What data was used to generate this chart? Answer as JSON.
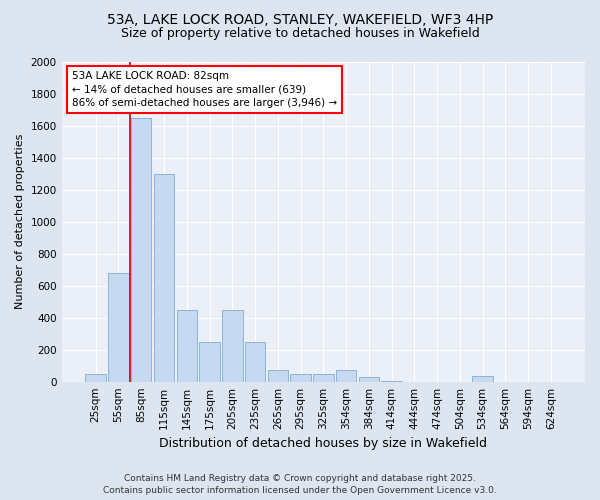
{
  "title_line1": "53A, LAKE LOCK ROAD, STANLEY, WAKEFIELD, WF3 4HP",
  "title_line2": "Size of property relative to detached houses in Wakefield",
  "xlabel": "Distribution of detached houses by size in Wakefield",
  "ylabel": "Number of detached properties",
  "categories": [
    "25sqm",
    "55sqm",
    "85sqm",
    "115sqm",
    "145sqm",
    "175sqm",
    "205sqm",
    "235sqm",
    "265sqm",
    "295sqm",
    "325sqm",
    "354sqm",
    "384sqm",
    "414sqm",
    "444sqm",
    "474sqm",
    "504sqm",
    "534sqm",
    "564sqm",
    "594sqm",
    "624sqm"
  ],
  "values": [
    50,
    680,
    1650,
    1300,
    450,
    250,
    450,
    250,
    75,
    50,
    50,
    75,
    30,
    5,
    0,
    0,
    0,
    35,
    0,
    0,
    0
  ],
  "bar_color": "#c6d9f0",
  "bar_edge_color": "#7bafd4",
  "vline_color": "#cc0000",
  "annotation_text": "53A LAKE LOCK ROAD: 82sqm\n← 14% of detached houses are smaller (639)\n86% of semi-detached houses are larger (3,946) →",
  "ylim": [
    0,
    2000
  ],
  "yticks": [
    0,
    200,
    400,
    600,
    800,
    1000,
    1200,
    1400,
    1600,
    1800,
    2000
  ],
  "footer_line1": "Contains HM Land Registry data © Crown copyright and database right 2025.",
  "footer_line2": "Contains public sector information licensed under the Open Government Licence v3.0.",
  "bg_color": "#dde5f0",
  "plot_bg_color": "#eaeff8",
  "grid_color": "#ffffff",
  "title_fontsize": 10,
  "subtitle_fontsize": 9,
  "ylabel_fontsize": 8,
  "xlabel_fontsize": 9,
  "tick_fontsize": 7.5,
  "footer_fontsize": 6.5
}
